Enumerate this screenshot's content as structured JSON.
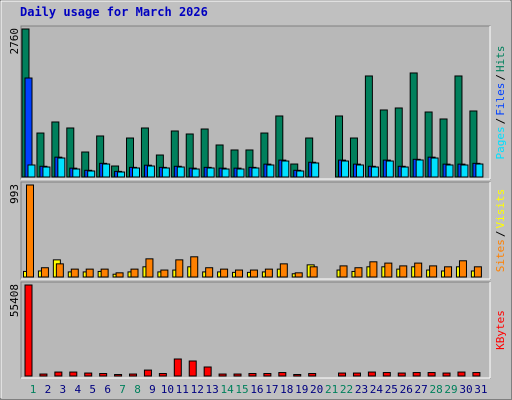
{
  "chart_data": [
    {
      "type": "bar",
      "title": "Daily usage for March 2026",
      "ylim": [
        0,
        2760
      ],
      "yticks": [
        2760
      ],
      "legend_separator": "/",
      "series": [
        {
          "name": "Hits",
          "color": "#00805c",
          "values": [
            2760,
            820,
            1026,
            914,
            466,
            765,
            205,
            727,
            914,
            410,
            858,
            802,
            895,
            597,
            504,
            504,
            820,
            1138,
            242,
            727,
            0,
            1138,
            727,
            1884,
            1250,
            1287,
            1940,
            1212,
            1082,
            1884,
            1231
          ]
        },
        {
          "name": "Files",
          "color": "#0040ff",
          "values": [
            1846,
            200,
            370,
            165,
            125,
            255,
            105,
            180,
            220,
            180,
            200,
            165,
            180,
            165,
            165,
            180,
            240,
            315,
            125,
            275,
            0,
            315,
            240,
            200,
            315,
            200,
            330,
            370,
            240,
            240,
            255
          ]
        },
        {
          "name": "Pages",
          "color": "#00e0ff",
          "values": [
            224,
            186,
            354,
            149,
            112,
            242,
            93,
            168,
            205,
            168,
            186,
            149,
            168,
            149,
            149,
            168,
            224,
            298,
            112,
            261,
            0,
            298,
            224,
            186,
            298,
            186,
            317,
            354,
            224,
            224,
            242
          ]
        }
      ]
    },
    {
      "type": "bar",
      "ylim": [
        0,
        993
      ],
      "yticks": [
        993
      ],
      "legend_separator": "/",
      "series": [
        {
          "name": "Visits",
          "color": "#ffff00",
          "values": [
            60,
            65,
            185,
            55,
            55,
            60,
            30,
            55,
            110,
            55,
            75,
            110,
            55,
            55,
            50,
            50,
            55,
            85,
            35,
            131,
            0,
            75,
            60,
            110,
            110,
            85,
            110,
            75,
            65,
            110,
            65
          ]
        },
        {
          "name": "Sites",
          "color": "#ff8000",
          "values": [
            993,
            100,
            142,
            85,
            85,
            85,
            45,
            85,
            196,
            75,
            185,
            218,
            100,
            85,
            75,
            75,
            85,
            142,
            45,
            110,
            0,
            120,
            100,
            164,
            150,
            120,
            150,
            120,
            110,
            175,
            110
          ]
        }
      ]
    },
    {
      "type": "bar",
      "ylim": [
        0,
        55408
      ],
      "yticks": [
        55408
      ],
      "categories": [
        "1",
        "2",
        "3",
        "4",
        "5",
        "6",
        "7",
        "8",
        "9",
        "10",
        "11",
        "12",
        "13",
        "14",
        "15",
        "16",
        "17",
        "18",
        "19",
        "20",
        "21",
        "22",
        "23",
        "24",
        "25",
        "26",
        "27",
        "28",
        "29",
        "30",
        "31"
      ],
      "category_colors": [
        "#00805c",
        "#000080",
        "#000080",
        "#000080",
        "#000080",
        "#000080",
        "#00805c",
        "#00805c",
        "#000080",
        "#000080",
        "#000080",
        "#000080",
        "#000080",
        "#00805c",
        "#00805c",
        "#000080",
        "#000080",
        "#000080",
        "#000080",
        "#000080",
        "#00805c",
        "#00805c",
        "#000080",
        "#000080",
        "#000080",
        "#000080",
        "#000080",
        "#00805c",
        "#00805c",
        "#000080",
        "#000080"
      ],
      "series": [
        {
          "name": "KBytes",
          "color": "#ff0000",
          "values": [
            55408,
            1200,
            2400,
            2400,
            1800,
            1500,
            900,
            1200,
            3600,
            1500,
            10350,
            9130,
            5480,
            1200,
            1200,
            1500,
            1500,
            2100,
            900,
            1500,
            0,
            1800,
            1800,
            2400,
            2100,
            1800,
            2100,
            2100,
            1800,
            2400,
            2100
          ]
        }
      ]
    }
  ]
}
